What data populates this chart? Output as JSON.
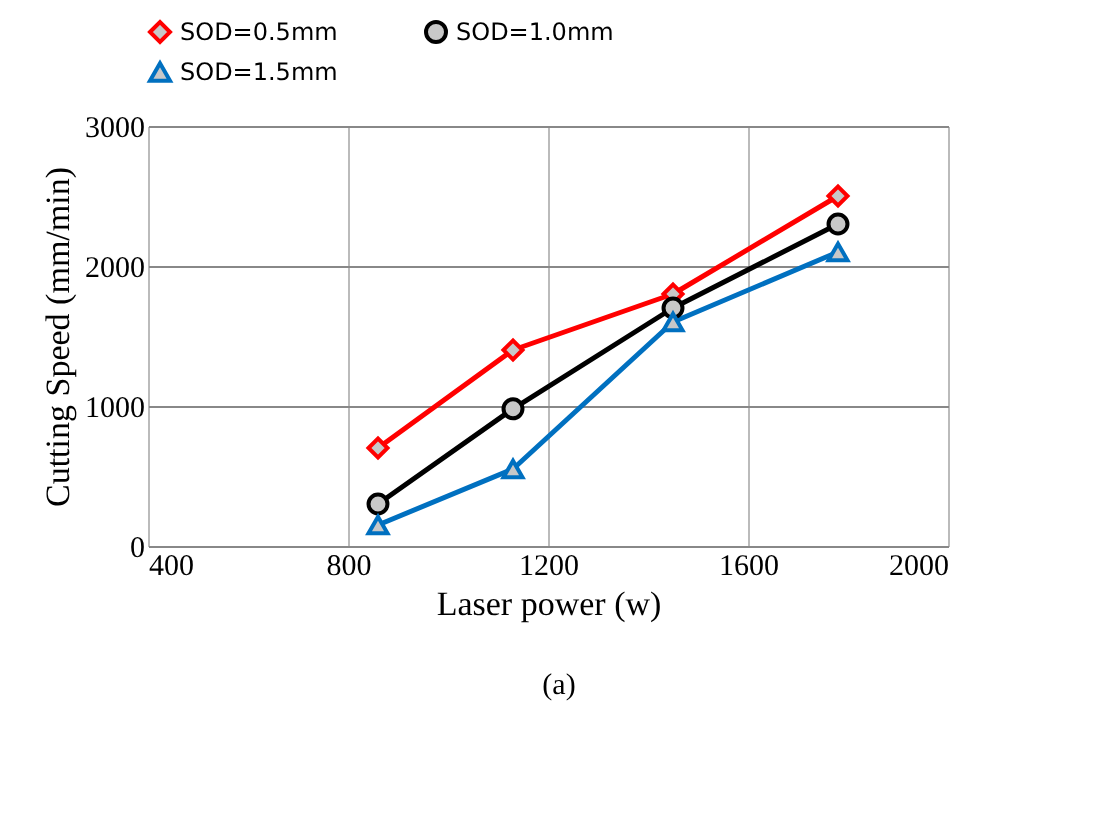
{
  "chart_data": {
    "type": "line",
    "xlabel": "Laser power (w)",
    "ylabel": "Cutting Speed (mm/min)",
    "annotations": [
      "(a)"
    ],
    "x": [
      860,
      1130,
      1450,
      1780
    ],
    "series": [
      {
        "name": "SOD=0.5mm",
        "color": "#ff0000",
        "marker": "diamond",
        "values": [
          700,
          1400,
          1800,
          2500
        ]
      },
      {
        "name": "SOD=1.0mm",
        "color": "#000000",
        "marker": "circle",
        "values": [
          300,
          980,
          1700,
          2300
        ]
      },
      {
        "name": "SOD=1.5mm",
        "color": "#0070c0",
        "marker": "triangle",
        "values": [
          150,
          550,
          1600,
          2100
        ]
      }
    ],
    "xlim": [
      400,
      2000
    ],
    "xticks": [
      400,
      800,
      1200,
      1600,
      2000
    ],
    "ylim": [
      0,
      3000
    ],
    "yticks": [
      0,
      1000,
      2000,
      3000
    ],
    "grid": true,
    "legend": "top",
    "line_style": "solid"
  }
}
